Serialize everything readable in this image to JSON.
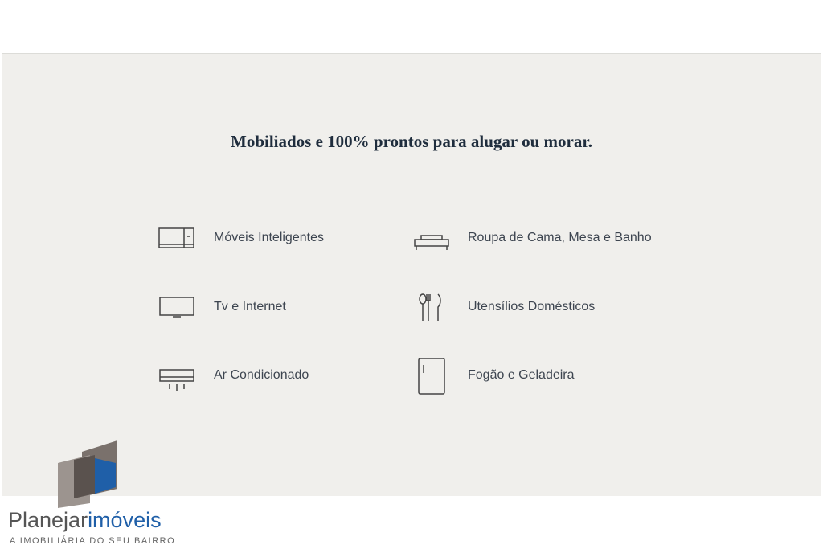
{
  "title": "Mobiliados e 100% prontos para alugar ou morar.",
  "features": [
    "Móveis Inteligentes",
    "Roupa de Cama, Mesa e Banho",
    "Tv e Internet",
    "Utensílios Domésticos",
    "Ar Condicionado",
    "Fogão e Geladeira"
  ],
  "logo": {
    "name_part1": "Planejar",
    "name_part2": "imóveis",
    "tagline": "A IMOBILIÁRIA DO SEU BAIRRO"
  }
}
